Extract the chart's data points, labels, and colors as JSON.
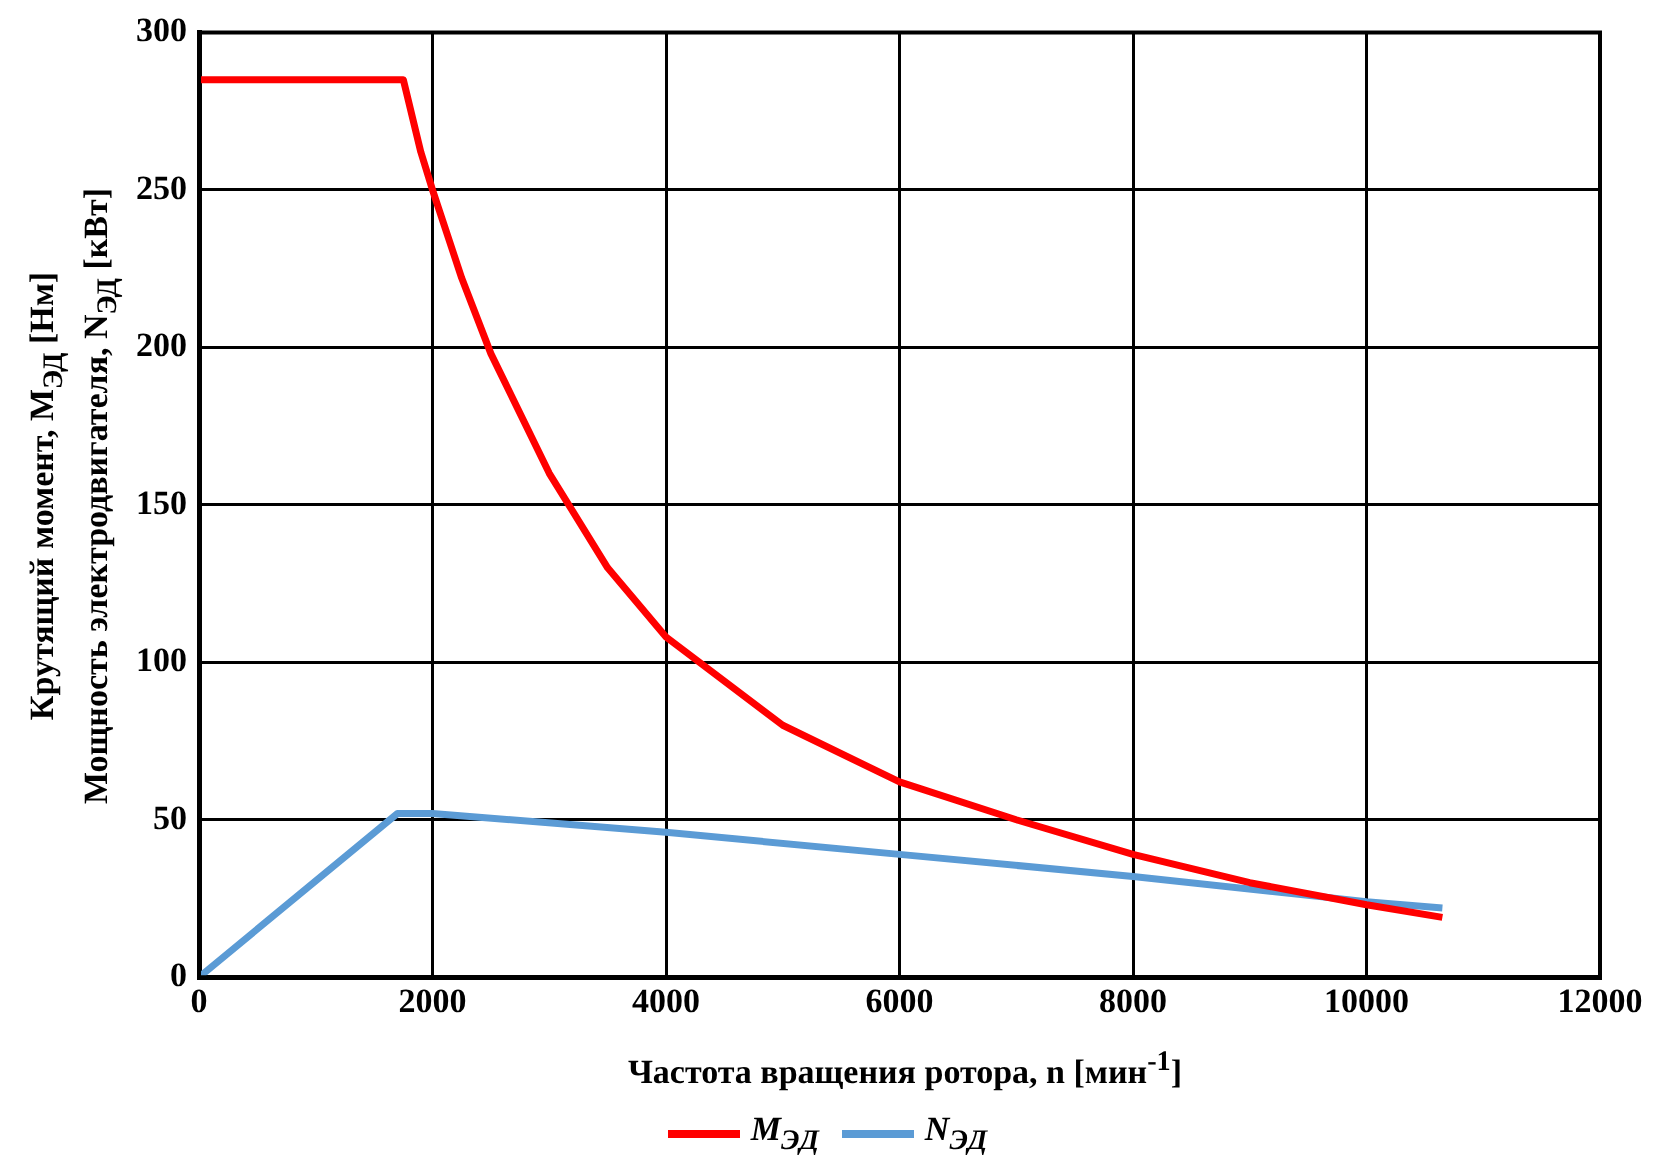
{
  "chart_data": {
    "type": "line",
    "xlabel": "Частота  вращения ротора, n [мин$^{-1}$]",
    "ylabel": "Крутящий момент, M$_{ЭД}$ [Нм]\nМощность электродвигателя, N$_{ЭД}$ [кВт]",
    "xlim": [
      0,
      12000
    ],
    "xticks": [
      0,
      2000,
      4000,
      6000,
      8000,
      10000,
      12000
    ],
    "ylim": [
      0,
      300
    ],
    "yticks": [
      0,
      50,
      100,
      150,
      200,
      250,
      300
    ],
    "grid": true,
    "legend": "bottom",
    "marker": "none",
    "line_style": "solid",
    "series": [
      {
        "name": "M$_{ЭД}$",
        "color": "#ff0000",
        "x": [
          0,
          1750,
          1900,
          2000,
          2250,
          2500,
          3000,
          3500,
          4000,
          5000,
          6000,
          7000,
          8000,
          9000,
          10000,
          10650
        ],
        "values": [
          285,
          285,
          262,
          250,
          222,
          198,
          160,
          130,
          108,
          80,
          62,
          50,
          39,
          30,
          23,
          19
        ]
      },
      {
        "name": "N$_{ЭД}$",
        "color": "#5b9bd5",
        "x": [
          0,
          1700,
          2000,
          4000,
          6000,
          8000,
          10000,
          10650
        ],
        "values": [
          0,
          52,
          52,
          46,
          39,
          32,
          24,
          22
        ]
      }
    ]
  }
}
